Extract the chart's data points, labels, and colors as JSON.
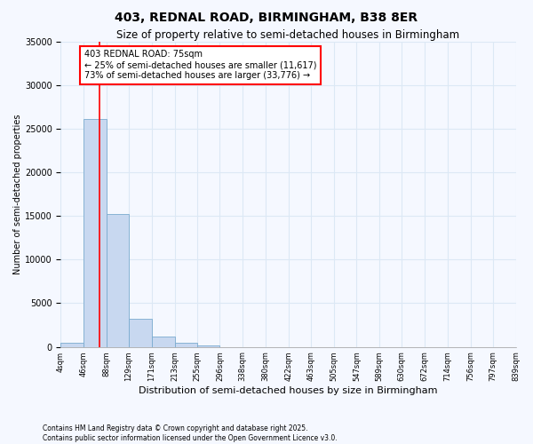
{
  "title": "403, REDNAL ROAD, BIRMINGHAM, B38 8ER",
  "subtitle": "Size of property relative to semi-detached houses in Birmingham",
  "xlabel": "Distribution of semi-detached houses by size in Birmingham",
  "ylabel": "Number of semi-detached properties",
  "footnote1": "Contains HM Land Registry data © Crown copyright and database right 2025.",
  "footnote2": "Contains public sector information licensed under the Open Government Licence v3.0.",
  "annotation_title": "403 REDNAL ROAD: 75sqm",
  "annotation_line1": "← 25% of semi-detached houses are smaller (11,617)",
  "annotation_line2": "73% of semi-detached houses are larger (33,776) →",
  "property_size": 75,
  "bin_edges": [
    4,
    46,
    88,
    129,
    171,
    213,
    255,
    296,
    338,
    380,
    422,
    463,
    505,
    547,
    589,
    630,
    672,
    714,
    756,
    797,
    839
  ],
  "bar_heights": [
    430,
    26100,
    15200,
    3200,
    1200,
    450,
    200,
    0,
    0,
    0,
    0,
    0,
    0,
    0,
    0,
    0,
    0,
    0,
    0,
    0
  ],
  "bar_color": "#c8d8f0",
  "bar_edge_color": "#7aabcf",
  "vline_color": "red",
  "background_color": "#f5f8ff",
  "grid_color": "#dce8f5",
  "ylim": [
    0,
    35000
  ],
  "yticks": [
    0,
    5000,
    10000,
    15000,
    20000,
    25000,
    30000,
    35000
  ]
}
